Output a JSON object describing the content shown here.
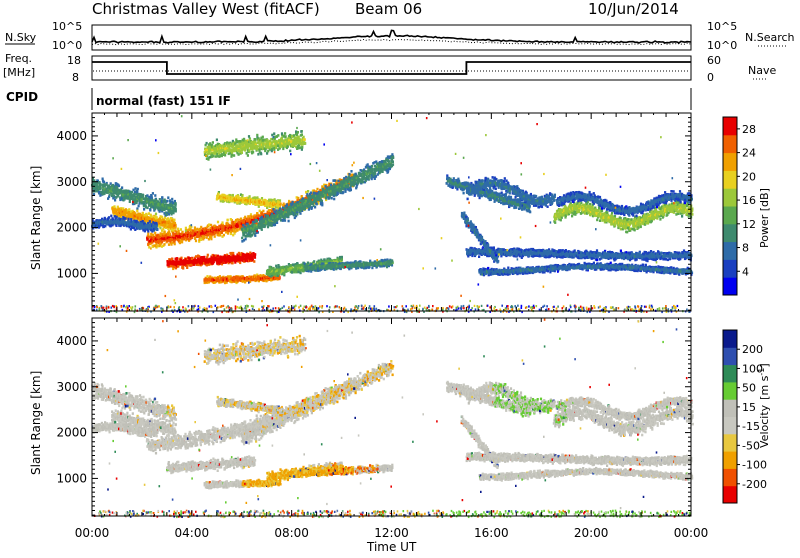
{
  "header": {
    "station": "Christmas Valley West (fitACF)",
    "beam": "Beam 06",
    "date": "10/Jun/2014"
  },
  "status": {
    "nsky_label": "N.Sky",
    "nsearch_label": "N.Search",
    "nsky_ticks": [
      "10^5",
      "10^0"
    ],
    "nsearch_ticks": [
      "10^5",
      "10^0"
    ],
    "freq_label": "Freq.",
    "freq_unit": "[MHz]",
    "freq_ticks": [
      "18",
      "8"
    ],
    "nave_label": "Nave",
    "nave_ticks": [
      "60",
      "0"
    ],
    "cpid_label": "CPID",
    "cpid_text": "normal (fast) 151 IF"
  },
  "colors": {
    "power": [
      "#0000f0",
      "#1a3fc0",
      "#2e6ba8",
      "#3e8a6e",
      "#5aa84e",
      "#9cc83a",
      "#e8d020",
      "#f0a000",
      "#f06000",
      "#e80000"
    ],
    "velocity": [
      "#e80000",
      "#f05000",
      "#f0a000",
      "#e8c840",
      "#c8c8c0",
      "#c0c0b8",
      "#66cc33",
      "#2e8b57",
      "#2f4fb0",
      "#0a1a8c"
    ]
  },
  "chart_data": [
    {
      "type": "line",
      "name": "status-lines",
      "x": [
        "00:00",
        "03:00",
        "15:00",
        "24:00"
      ],
      "series": [
        {
          "name": "Freq. [MHz]",
          "x": [
            0,
            3,
            3,
            15,
            15,
            24
          ],
          "values": [
            15.5,
            15.5,
            10.5,
            10.5,
            15.5,
            15.5
          ]
        }
      ]
    },
    {
      "type": "heatmap",
      "name": "power",
      "xlabel": "Time UT",
      "ylabel": "Slant Range [km]",
      "xticks": [
        "00:00",
        "04:00",
        "08:00",
        "12:00",
        "16:00",
        "20:00",
        "00:00"
      ],
      "yticks": [
        "1000",
        "2000",
        "3000",
        "4000"
      ],
      "xlim": [
        0,
        24
      ],
      "ylim": [
        180,
        4500
      ],
      "colorbar_label": "Power [dB]",
      "colorbar_ticks": [
        "4",
        "8",
        "12",
        "16",
        "20",
        "24",
        "28"
      ],
      "colorbar_range": [
        0,
        30
      ]
    },
    {
      "type": "heatmap",
      "name": "velocity",
      "xlabel": "Time UT",
      "ylabel": "Slant Range [km]",
      "xticks": [
        "00:00",
        "04:00",
        "08:00",
        "12:00",
        "16:00",
        "20:00",
        "00:00"
      ],
      "yticks": [
        "1000",
        "2000",
        "3000",
        "4000"
      ],
      "xlim": [
        0,
        24
      ],
      "ylim": [
        180,
        4500
      ],
      "colorbar_label": "Velocity",
      "colorbar_unit": "[m s",
      "colorbar_unit_sup": "-1",
      "colorbar_unit_end": "]",
      "colorbar_ticks": [
        "-200",
        "-100",
        "-50",
        "-15",
        "15",
        "50",
        "100",
        "200"
      ]
    }
  ],
  "xlabel": "Time UT"
}
